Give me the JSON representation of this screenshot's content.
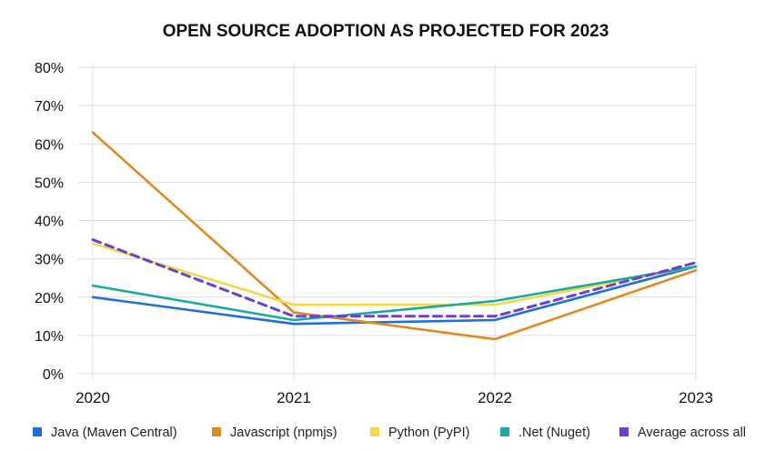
{
  "chart_data": {
    "type": "line",
    "title": "OPEN SOURCE ADOPTION AS PROJECTED FOR 2023",
    "xlabel": "",
    "ylabel": "",
    "categories": [
      "2020",
      "2021",
      "2022",
      "2023"
    ],
    "ylim": [
      0,
      80
    ],
    "yticks": [
      0,
      10,
      20,
      30,
      40,
      50,
      60,
      70,
      80
    ],
    "ytick_labels": [
      "0%",
      "10%",
      "20%",
      "30%",
      "40%",
      "50%",
      "60%",
      "70%",
      "80%"
    ],
    "grid": true,
    "legend_position": "bottom",
    "series": [
      {
        "name": "Java (Maven Central)",
        "color": "#1f6fd8",
        "dashed": false,
        "values": [
          20,
          13,
          14,
          28
        ]
      },
      {
        "name": "Javascript (npmjs)",
        "color": "#e08a1e",
        "dashed": false,
        "values": [
          63,
          16,
          9,
          27
        ]
      },
      {
        "name": "Python (PyPI)",
        "color": "#f3d84a",
        "dashed": false,
        "values": [
          34,
          18,
          18,
          28
        ]
      },
      {
        "name": ".Net (Nuget)",
        "color": "#1aa9a0",
        "dashed": false,
        "values": [
          23,
          14,
          19,
          28
        ]
      },
      {
        "name": "Average across all",
        "color": "#6a3fd2",
        "dashed": true,
        "values": [
          35,
          15,
          15,
          29
        ]
      }
    ]
  }
}
